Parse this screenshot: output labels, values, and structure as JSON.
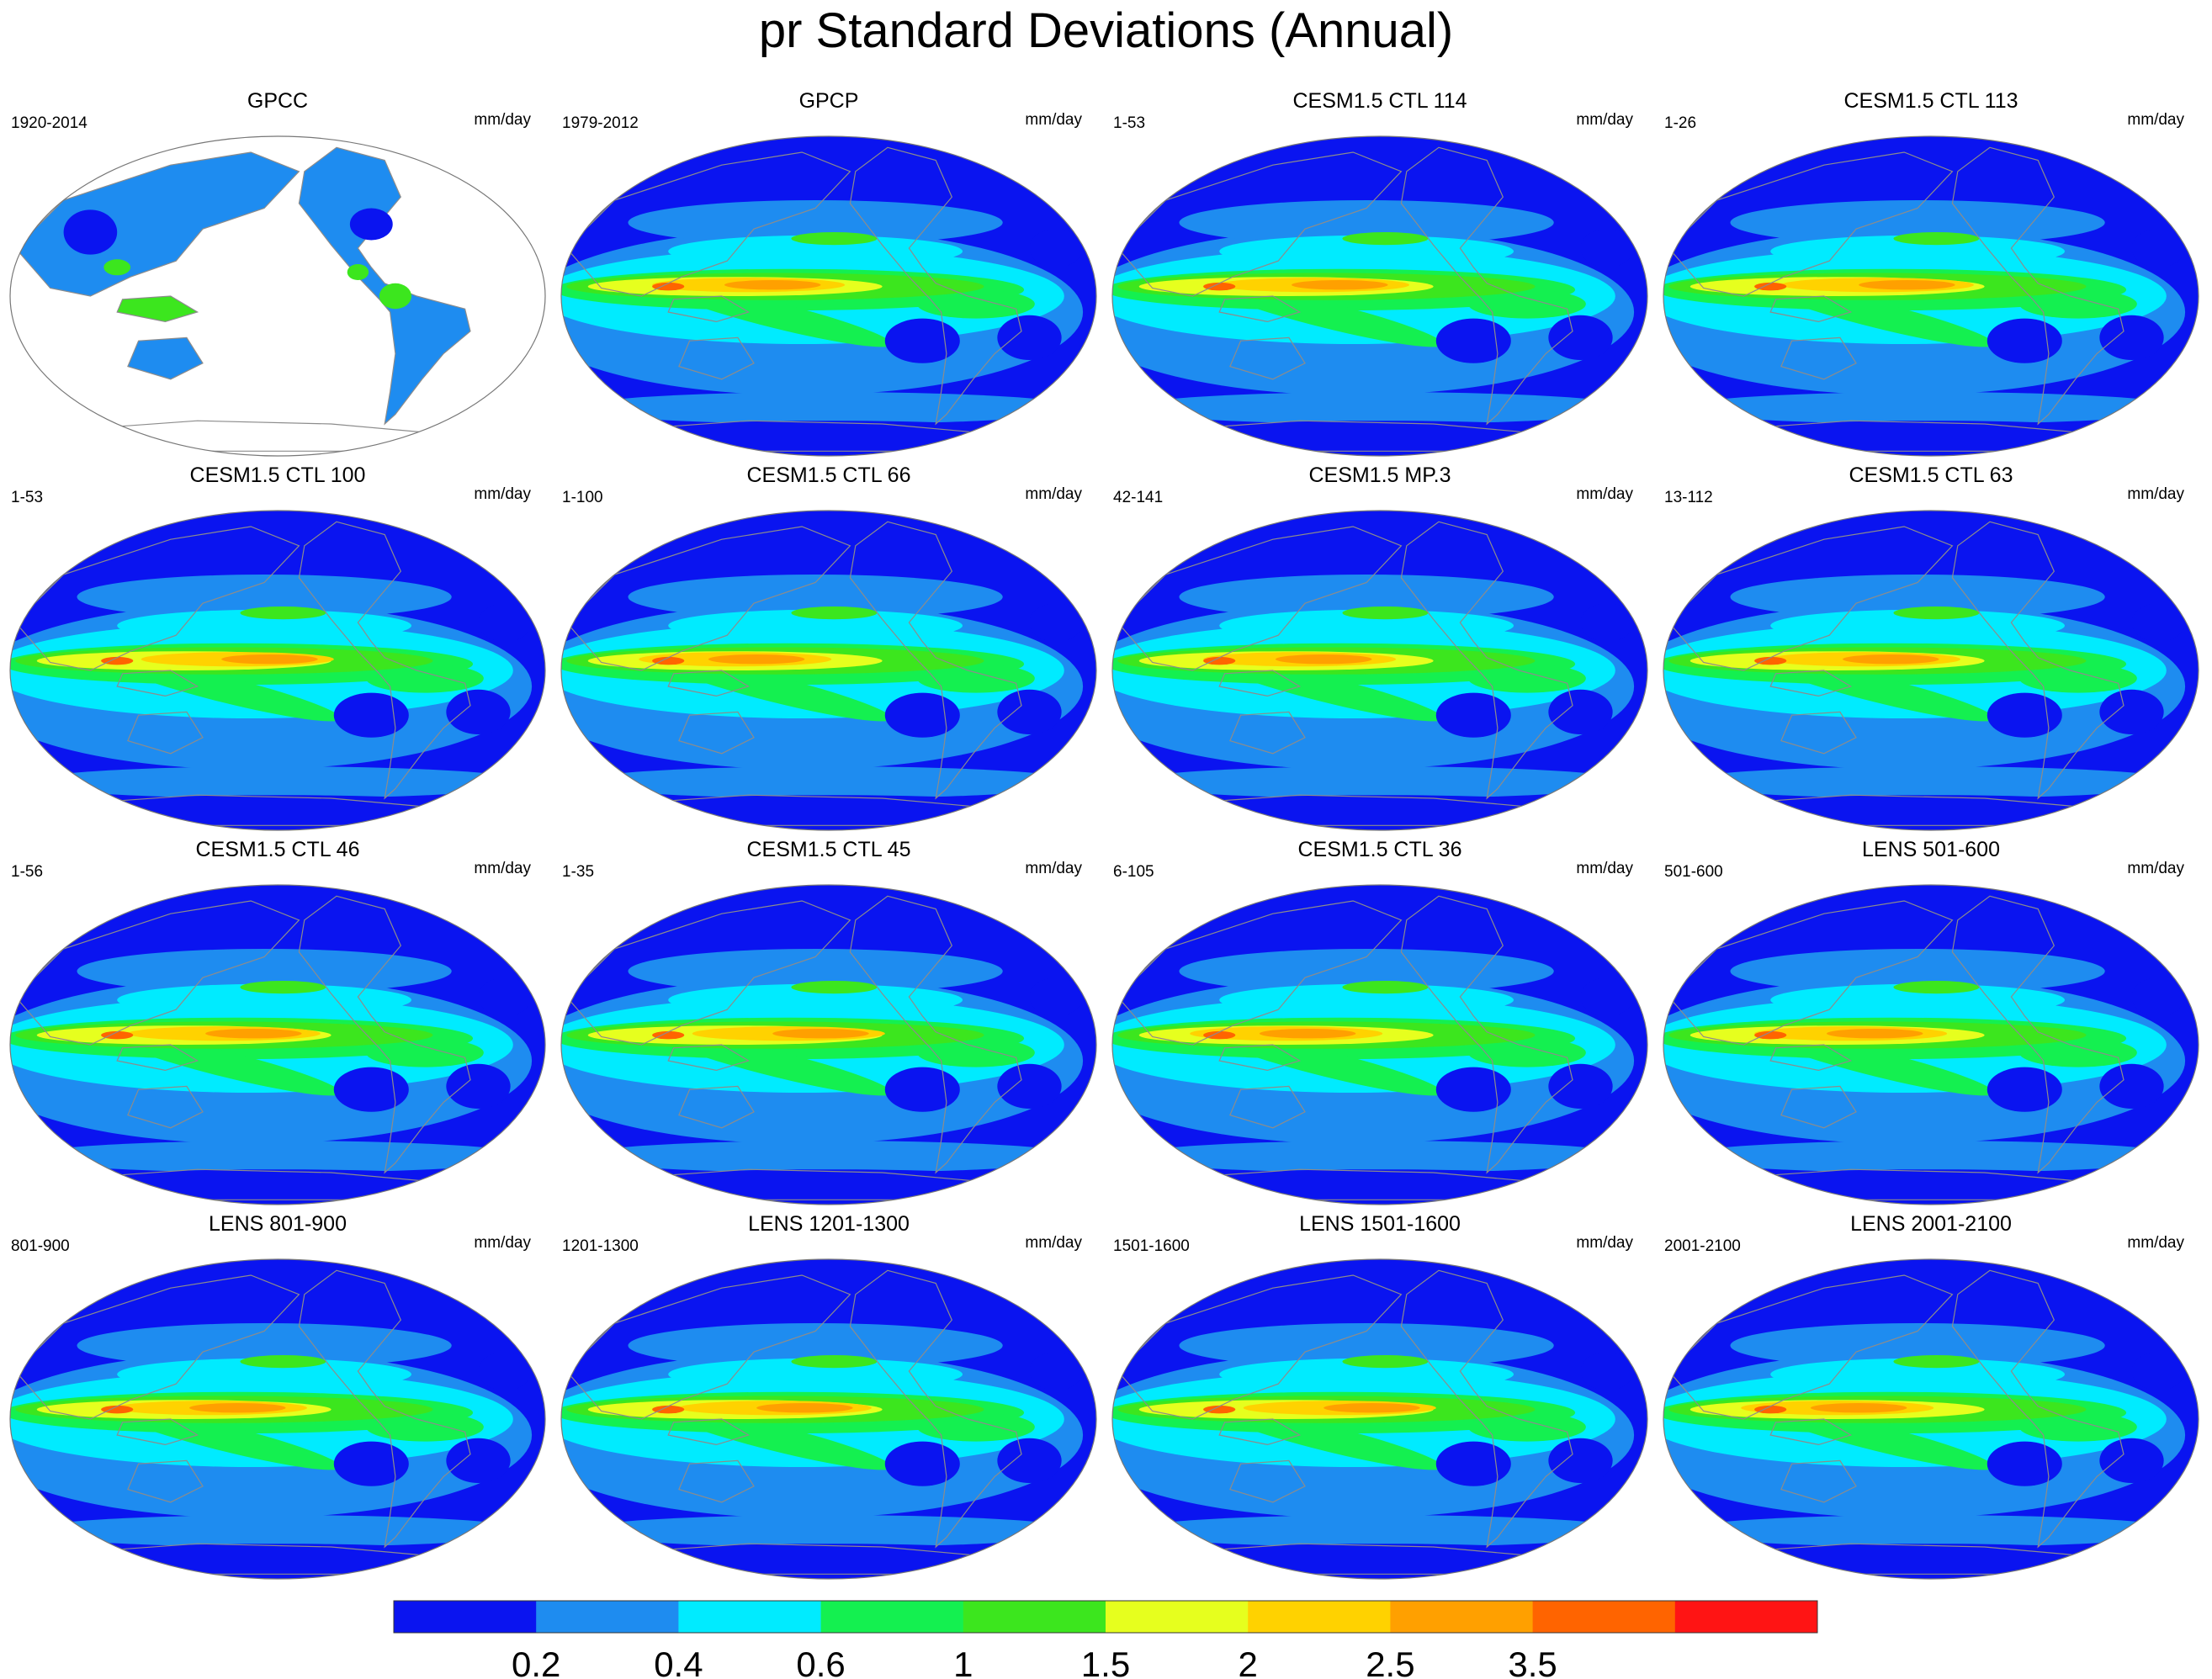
{
  "title": "pr Standard Deviations (Annual)",
  "units": "mm/day",
  "panels": [
    {
      "name": "GPCC",
      "years": "1920-2014",
      "land_only": true
    },
    {
      "name": "GPCP",
      "years": "1979-2012"
    },
    {
      "name": "CESM1.5 CTL 114",
      "years": "1-53"
    },
    {
      "name": "CESM1.5 CTL 113",
      "years": "1-26"
    },
    {
      "name": "CESM1.5 CTL 100",
      "years": "1-53"
    },
    {
      "name": "CESM1.5 CTL 66",
      "years": "1-100"
    },
    {
      "name": "CESM1.5 MP.3",
      "years": "42-141"
    },
    {
      "name": "CESM1.5 CTL 63",
      "years": "13-112"
    },
    {
      "name": "CESM1.5 CTL 46",
      "years": "1-56"
    },
    {
      "name": "CESM1.5 CTL 45",
      "years": "1-35"
    },
    {
      "name": "CESM1.5 CTL 36",
      "years": "6-105"
    },
    {
      "name": "LENS 501-600",
      "years": "501-600"
    },
    {
      "name": "LENS 801-900",
      "years": "801-900"
    },
    {
      "name": "LENS 1201-1300",
      "years": "1201-1300"
    },
    {
      "name": "LENS 1501-1600",
      "years": "1501-1600"
    },
    {
      "name": "LENS 2001-2100",
      "years": "2001-2100"
    }
  ],
  "colorbar": {
    "labels": [
      "0.2",
      "0.4",
      "0.6",
      "1",
      "1.5",
      "2",
      "2.5",
      "3.5"
    ],
    "colors": [
      "#0A14F0",
      "#1E8CF0",
      "#00EBFF",
      "#14F050",
      "#3CE61E",
      "#E6FF1E",
      "#FFD200",
      "#FFA000",
      "#FF6400",
      "#FF1414"
    ]
  },
  "map_colors": {
    "land_outline": "#8C8C8C",
    "ocean_blank": "#ffffff"
  }
}
